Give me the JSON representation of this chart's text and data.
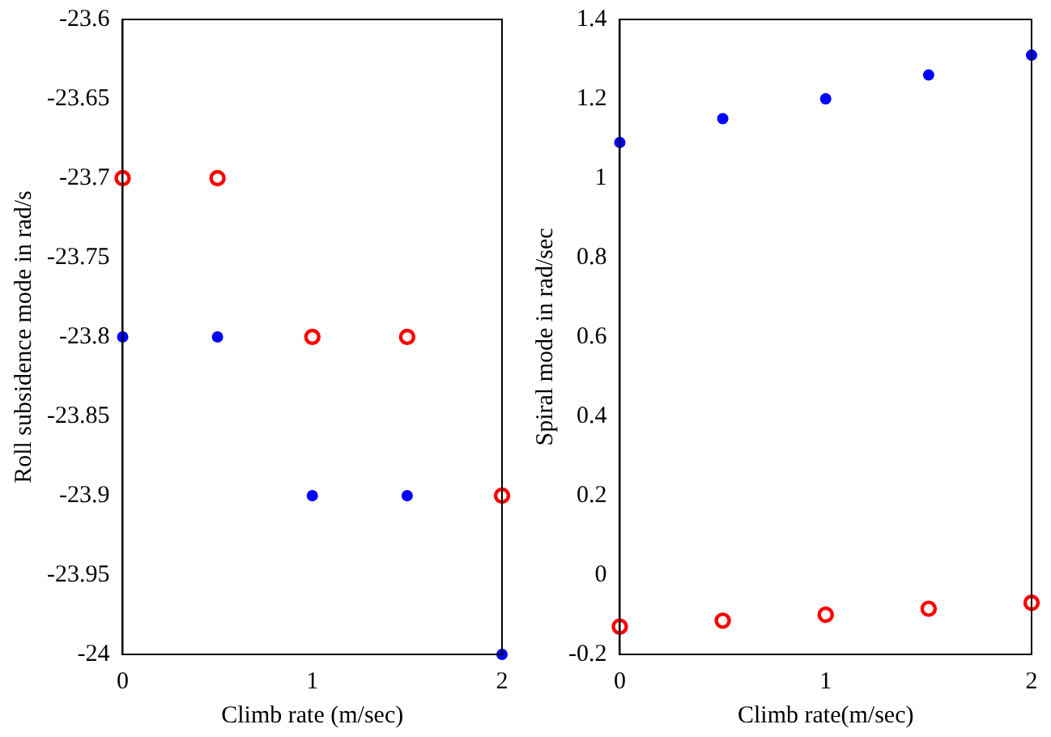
{
  "chart_data": [
    {
      "type": "scatter",
      "xlabel": "Climb rate (m/sec)",
      "ylabel": "Roll subsidence mode in rad/s",
      "x": [
        0,
        0.5,
        1,
        1.5,
        2
      ],
      "xlim": [
        0,
        2
      ],
      "xticks": [
        0,
        1,
        2
      ],
      "ylim": [
        -24,
        -23.6
      ],
      "yticks": [
        -24,
        -23.95,
        -23.9,
        -23.85,
        -23.8,
        -23.75,
        -23.7,
        -23.65,
        -23.6
      ],
      "grid": false,
      "legend": false,
      "marker": "circle",
      "series": [
        {
          "color": "#ff0000",
          "values": [
            -23.7,
            -23.7,
            -23.8,
            -23.8,
            -23.9
          ]
        },
        {
          "color": "#0000ff",
          "values": [
            -23.8,
            -23.8,
            -23.9,
            -23.9,
            -24
          ]
        }
      ]
    },
    {
      "type": "scatter",
      "xlabel": "Climb rate(m/sec)",
      "ylabel": "Spiral mode in rad/sec",
      "x": [
        0,
        0.5,
        1,
        1.5,
        2
      ],
      "xlim": [
        0,
        2
      ],
      "xticks": [
        0,
        1,
        2
      ],
      "ylim": [
        -0.2,
        1.4
      ],
      "yticks": [
        -0.2,
        0,
        0.2,
        0.4,
        0.6,
        0.8,
        1,
        1.2,
        1.4
      ],
      "grid": false,
      "legend": false,
      "marker": "circle",
      "series": [
        {
          "color": "#0000ff",
          "values": [
            1.09,
            1.15,
            1.2,
            1.26,
            1.31
          ]
        },
        {
          "color": "#ff0000",
          "values": [
            -0.13,
            -0.115,
            -0.1,
            -0.085,
            -0.07
          ]
        }
      ]
    }
  ]
}
